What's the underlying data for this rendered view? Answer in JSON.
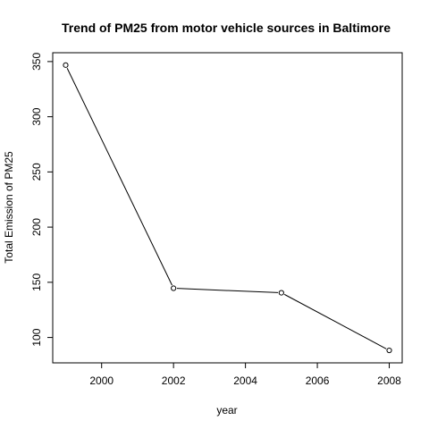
{
  "chart_data": {
    "type": "line",
    "title": "Trend of PM25 from motor vehicle sources in Baltimore",
    "xlabel": "year",
    "ylabel": "Total Emission of PM25",
    "x": [
      1999,
      2002,
      2005,
      2008
    ],
    "series": [
      {
        "values": [
          346.8,
          144.6,
          140.5,
          88.3
        ]
      }
    ],
    "xlim": [
      1998.64,
      2008.36
    ],
    "ylim": [
      77.0,
      358.0
    ],
    "xticks": [
      2000,
      2002,
      2004,
      2006,
      2008
    ],
    "yticks": [
      100,
      150,
      200,
      250,
      300,
      350
    ],
    "marker": "open-circle",
    "line_color": "#000000",
    "grid": false,
    "legend": "none"
  }
}
